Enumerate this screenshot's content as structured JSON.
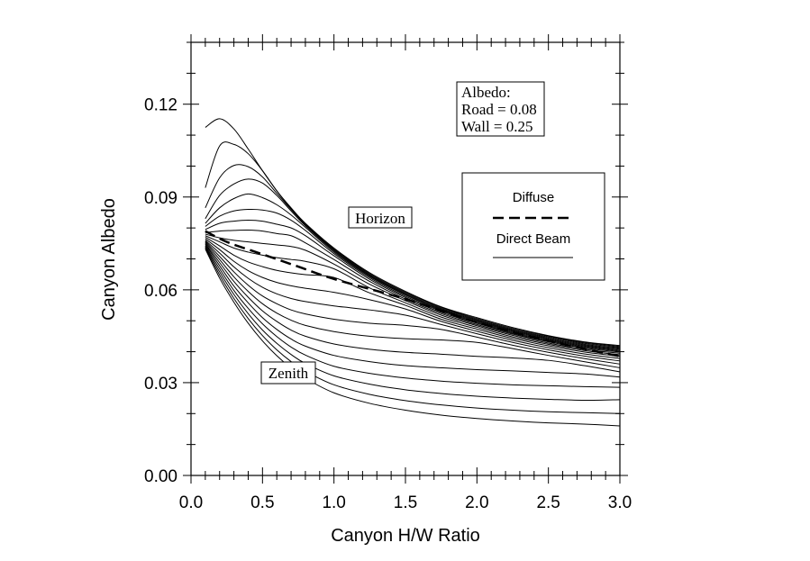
{
  "chart_data": {
    "type": "line",
    "xlabel": "Canyon H/W Ratio",
    "ylabel": "Canyon Albedo",
    "xlim": [
      0.0,
      3.0
    ],
    "ylim": [
      0.0,
      0.14
    ],
    "xticks": [
      "0.0",
      "0.5",
      "1.0",
      "1.5",
      "2.0",
      "2.5",
      "3.0"
    ],
    "yticks": [
      "0.00",
      "0.03",
      "0.06",
      "0.09",
      "0.12"
    ],
    "grid": false,
    "info_box": [
      "Albedo:",
      "Road = 0.08",
      "Wall = 0.25"
    ],
    "legend": {
      "placement": "right",
      "entries": [
        {
          "label": "Diffuse",
          "style": "dashed"
        },
        {
          "label": "Direct Beam",
          "style": "solid"
        }
      ]
    },
    "annotations": {
      "horizon": "Horizon",
      "zenith": "Zenith"
    },
    "diffuse": {
      "x": [
        0.1,
        0.25,
        0.5,
        0.75,
        1.0,
        1.5,
        2.0,
        2.5,
        3.0
      ],
      "y": [
        0.079,
        0.0755,
        0.0715,
        0.0675,
        0.0635,
        0.057,
        0.0495,
        0.0435,
        0.0385
      ]
    },
    "direct_beam_x": [
      0.1,
      0.2,
      0.3,
      0.4,
      0.5,
      0.6,
      0.7,
      0.8,
      1.0,
      1.25,
      1.5,
      1.75,
      2.0,
      2.25,
      2.5,
      2.75,
      3.0
    ],
    "direct_beam_series": [
      [
        0.1125,
        0.1153,
        0.112,
        0.1055,
        0.0985,
        0.092,
        0.0865,
        0.0815,
        0.0735,
        0.0655,
        0.0595,
        0.0545,
        0.051,
        0.0478,
        0.0452,
        0.0432,
        0.042
      ],
      [
        0.093,
        0.1065,
        0.107,
        0.104,
        0.0985,
        0.092,
        0.0862,
        0.0812,
        0.0732,
        0.0652,
        0.0592,
        0.0543,
        0.0507,
        0.0475,
        0.045,
        0.043,
        0.0417
      ],
      [
        0.0865,
        0.0962,
        0.1002,
        0.0998,
        0.0965,
        0.0912,
        0.086,
        0.081,
        0.0729,
        0.0649,
        0.0589,
        0.054,
        0.0504,
        0.0472,
        0.0447,
        0.0427,
        0.0414
      ],
      [
        0.083,
        0.0905,
        0.0942,
        0.0958,
        0.0945,
        0.0905,
        0.0855,
        0.0807,
        0.0726,
        0.0646,
        0.0586,
        0.0537,
        0.0501,
        0.0469,
        0.0444,
        0.0424,
        0.0411
      ],
      [
        0.0815,
        0.0865,
        0.0895,
        0.091,
        0.0898,
        0.0875,
        0.0842,
        0.0802,
        0.0722,
        0.0643,
        0.0583,
        0.0534,
        0.0498,
        0.0466,
        0.0441,
        0.0421,
        0.0408
      ],
      [
        0.0805,
        0.0838,
        0.0855,
        0.086,
        0.0858,
        0.0848,
        0.0825,
        0.0792,
        0.0717,
        0.0639,
        0.0579,
        0.0531,
        0.0495,
        0.0463,
        0.0438,
        0.0418,
        0.0405
      ],
      [
        0.0795,
        0.0815,
        0.0822,
        0.0825,
        0.0822,
        0.0812,
        0.08,
        0.0775,
        0.071,
        0.0634,
        0.0575,
        0.0527,
        0.0492,
        0.046,
        0.0435,
        0.0415,
        0.0402
      ],
      [
        0.0785,
        0.079,
        0.0792,
        0.0793,
        0.079,
        0.0782,
        0.0775,
        0.0752,
        0.0698,
        0.0627,
        0.057,
        0.0523,
        0.0488,
        0.0457,
        0.0432,
        0.0412,
        0.0399
      ],
      [
        0.078,
        0.0768,
        0.076,
        0.0755,
        0.075,
        0.0745,
        0.074,
        0.0728,
        0.0683,
        0.0618,
        0.0565,
        0.0518,
        0.0484,
        0.0453,
        0.0428,
        0.0408,
        0.0395
      ],
      [
        0.0775,
        0.0755,
        0.0735,
        0.0722,
        0.0712,
        0.0704,
        0.0698,
        0.0692,
        0.0668,
        0.0606,
        0.0558,
        0.0512,
        0.0479,
        0.0448,
        0.0424,
        0.0404,
        0.039
      ],
      [
        0.077,
        0.0742,
        0.0712,
        0.069,
        0.0675,
        0.0663,
        0.0655,
        0.0649,
        0.064,
        0.059,
        0.055,
        0.0505,
        0.0473,
        0.0443,
        0.0419,
        0.0399,
        0.0385
      ],
      [
        0.0765,
        0.073,
        0.0692,
        0.0662,
        0.064,
        0.0624,
        0.0613,
        0.0605,
        0.0592,
        0.0568,
        0.0538,
        0.0498,
        0.0466,
        0.0437,
        0.0413,
        0.0393,
        0.0378
      ],
      [
        0.076,
        0.0719,
        0.0674,
        0.0637,
        0.0608,
        0.0587,
        0.0572,
        0.0562,
        0.0548,
        0.0535,
        0.0518,
        0.0488,
        0.0458,
        0.043,
        0.0406,
        0.0386,
        0.037
      ],
      [
        0.0757,
        0.0708,
        0.0658,
        0.0615,
        0.058,
        0.0555,
        0.0535,
        0.0522,
        0.0505,
        0.0492,
        0.0485,
        0.0472,
        0.0447,
        0.0421,
        0.0398,
        0.0378,
        0.036
      ],
      [
        0.0754,
        0.0698,
        0.0642,
        0.0595,
        0.0555,
        0.0525,
        0.0502,
        0.0485,
        0.0465,
        0.045,
        0.0442,
        0.0438,
        0.043,
        0.041,
        0.0388,
        0.0368,
        0.0348
      ],
      [
        0.075,
        0.0688,
        0.0627,
        0.0576,
        0.0532,
        0.0498,
        0.047,
        0.045,
        0.0425,
        0.0408,
        0.0398,
        0.0392,
        0.0385,
        0.038,
        0.0372,
        0.0355,
        0.0335
      ],
      [
        0.0747,
        0.0678,
        0.0612,
        0.0558,
        0.051,
        0.0472,
        0.0441,
        0.0418,
        0.0388,
        0.0368,
        0.0355,
        0.0348,
        0.0342,
        0.0338,
        0.0333,
        0.0328,
        0.0318
      ],
      [
        0.0743,
        0.0668,
        0.0598,
        0.054,
        0.049,
        0.0449,
        0.0415,
        0.0389,
        0.0353,
        0.033,
        0.0315,
        0.0305,
        0.0298,
        0.0293,
        0.029,
        0.0287,
        0.0285
      ],
      [
        0.074,
        0.0658,
        0.0585,
        0.0523,
        0.047,
        0.0427,
        0.0391,
        0.0362,
        0.0322,
        0.0295,
        0.0277,
        0.0265,
        0.0256,
        0.025,
        0.0246,
        0.0243,
        0.0245
      ],
      [
        0.0736,
        0.0648,
        0.0572,
        0.0507,
        0.0452,
        0.0406,
        0.0368,
        0.0337,
        0.0293,
        0.0262,
        0.0242,
        0.0228,
        0.0218,
        0.0211,
        0.0206,
        0.0203,
        0.02
      ],
      [
        0.0732,
        0.0638,
        0.056,
        0.0492,
        0.0435,
        0.0387,
        0.0347,
        0.0314,
        0.0267,
        0.0233,
        0.0211,
        0.0195,
        0.0184,
        0.0176,
        0.017,
        0.0166,
        0.016
      ]
    ]
  }
}
